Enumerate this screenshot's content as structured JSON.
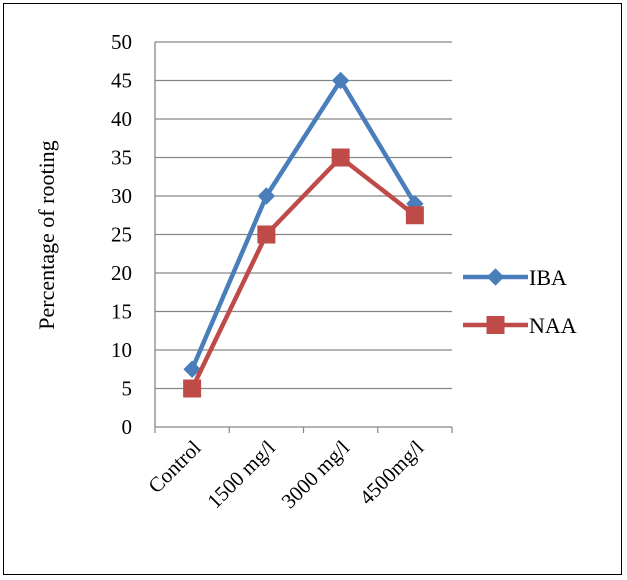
{
  "chart_data": {
    "type": "line",
    "categories": [
      "Control",
      "1500 mg/l",
      "3000 mg/l",
      "4500mg/l"
    ],
    "series": [
      {
        "name": "IBA",
        "values": [
          7.5,
          30,
          45,
          29
        ],
        "color": "#4a7ebb",
        "marker": "diamond"
      },
      {
        "name": "NAA",
        "values": [
          5,
          25,
          35,
          27.5
        ],
        "color": "#be4b48",
        "marker": "square"
      }
    ],
    "xlabel": "",
    "ylabel": "Percentage of  rooting",
    "ylim": [
      0,
      50
    ],
    "yticks": [
      0,
      5,
      10,
      15,
      20,
      25,
      30,
      35,
      40,
      45,
      50
    ],
    "grid": true,
    "legend_position": "right"
  }
}
